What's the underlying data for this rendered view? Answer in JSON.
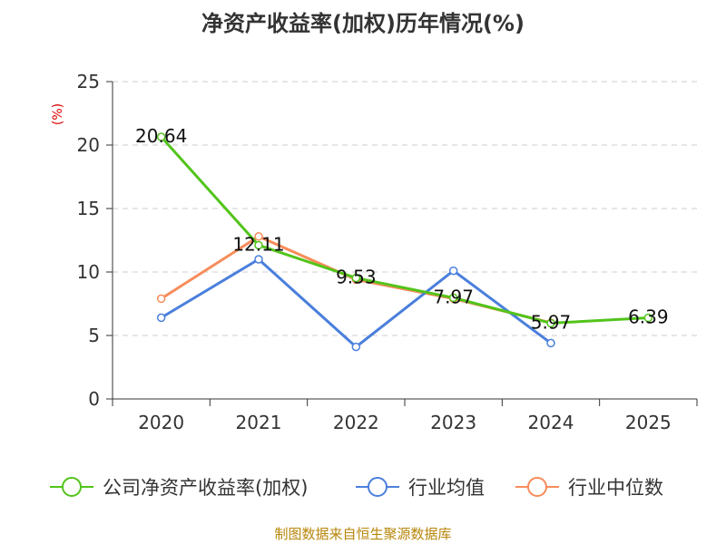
{
  "chart_data": {
    "type": "line",
    "title": "净资产收益率(加权)历年情况(%)",
    "ylabel": "(%)",
    "xlabel": "",
    "categories": [
      "2020",
      "2021",
      "2022",
      "2023",
      "2024",
      "2025"
    ],
    "ylim": [
      0,
      25
    ],
    "yticks": [
      0,
      5,
      10,
      15,
      20,
      25
    ],
    "grid": true,
    "legend_position": "bottom",
    "series": [
      {
        "name": "公司净资产收益率(加权)",
        "color": "#52c41a",
        "values": [
          20.64,
          12.11,
          9.53,
          7.97,
          5.97,
          6.39
        ]
      },
      {
        "name": "行业均值",
        "color": "#4a7fdc",
        "values": [
          6.4,
          11.0,
          4.1,
          10.1,
          4.4,
          null
        ]
      },
      {
        "name": "行业中位数",
        "color": "#f78c5a",
        "values": [
          7.9,
          12.8,
          9.4,
          7.9,
          6.0,
          null
        ]
      }
    ],
    "data_labels": [
      "20.64",
      "12.11",
      "9.53",
      "7.97",
      "5.97",
      "6.39"
    ],
    "source": "制图数据来自恒生聚源数据库"
  }
}
